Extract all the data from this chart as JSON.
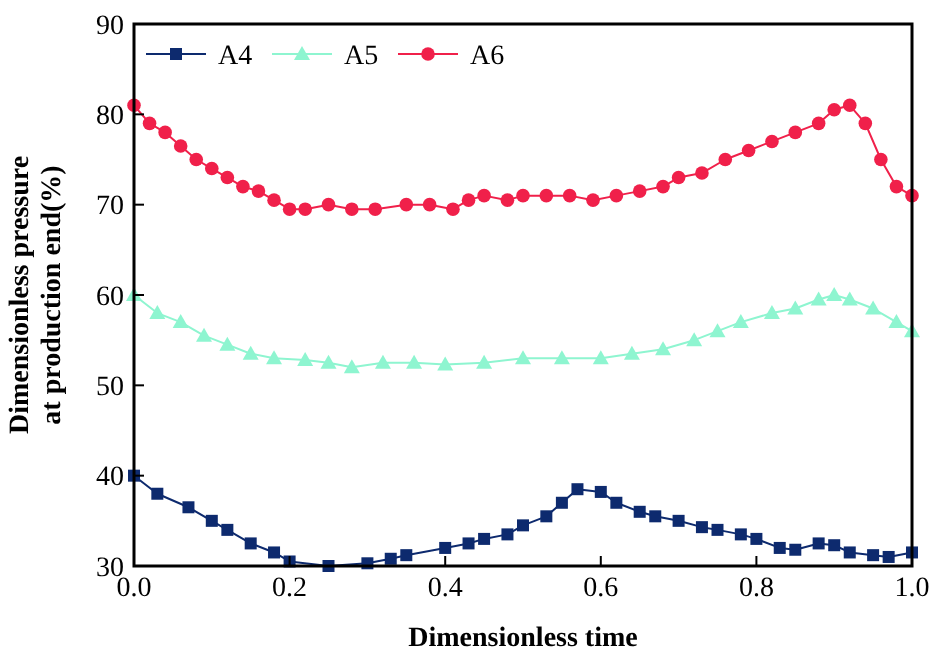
{
  "chart_data": {
    "type": "line",
    "xlabel": "Dimensionless time",
    "ylabel": "Dimensionless pressure\nat production end(%)",
    "xlim": [
      0,
      1
    ],
    "ylim": [
      30,
      90
    ],
    "xticks": [
      {
        "value": 0,
        "label": "0.0"
      },
      {
        "value": 0.2,
        "label": "0.2"
      },
      {
        "value": 0.4,
        "label": "0.4"
      },
      {
        "value": 0.6,
        "label": "0.6"
      },
      {
        "value": 0.8,
        "label": "0.8"
      },
      {
        "value": 1,
        "label": "1.0"
      }
    ],
    "yticks": [
      30,
      40,
      50,
      60,
      70,
      80,
      90
    ],
    "grid": false,
    "legend": "top left",
    "series": [
      {
        "name": "A4",
        "color": "#0d2a6e",
        "marker": "square",
        "x": [
          0,
          0.03,
          0.07,
          0.1,
          0.12,
          0.15,
          0.18,
          0.2,
          0.25,
          0.3,
          0.33,
          0.35,
          0.4,
          0.43,
          0.45,
          0.48,
          0.5,
          0.53,
          0.55,
          0.57,
          0.6,
          0.62,
          0.65,
          0.67,
          0.7,
          0.73,
          0.75,
          0.78,
          0.8,
          0.83,
          0.85,
          0.88,
          0.9,
          0.92,
          0.95,
          0.97,
          1
        ],
        "values": [
          40,
          38,
          36.5,
          35,
          34,
          32.5,
          31.5,
          30.5,
          30,
          30.3,
          30.8,
          31.2,
          32,
          32.5,
          33,
          33.5,
          34.5,
          35.5,
          37,
          38.5,
          38.2,
          37,
          36,
          35.5,
          35,
          34.3,
          34,
          33.5,
          33,
          32,
          31.8,
          32.5,
          32.3,
          31.5,
          31.2,
          31,
          31.5
        ]
      },
      {
        "name": "A5",
        "color": "#8ef5d0",
        "marker": "triangle",
        "x": [
          0,
          0.03,
          0.06,
          0.09,
          0.12,
          0.15,
          0.18,
          0.22,
          0.25,
          0.28,
          0.32,
          0.36,
          0.4,
          0.45,
          0.5,
          0.55,
          0.6,
          0.64,
          0.68,
          0.72,
          0.75,
          0.78,
          0.82,
          0.85,
          0.88,
          0.9,
          0.92,
          0.95,
          0.98,
          1
        ],
        "values": [
          60,
          58,
          57,
          55.5,
          54.5,
          53.5,
          53,
          52.8,
          52.5,
          52,
          52.5,
          52.5,
          52.3,
          52.5,
          53,
          53,
          53,
          53.5,
          54,
          55,
          56,
          57,
          58,
          58.5,
          59.5,
          60,
          59.5,
          58.5,
          57,
          56
        ]
      },
      {
        "name": "A6",
        "color": "#f0204a",
        "marker": "circle",
        "x": [
          0,
          0.02,
          0.04,
          0.06,
          0.08,
          0.1,
          0.12,
          0.14,
          0.16,
          0.18,
          0.2,
          0.22,
          0.25,
          0.28,
          0.31,
          0.35,
          0.38,
          0.41,
          0.43,
          0.45,
          0.48,
          0.5,
          0.53,
          0.56,
          0.59,
          0.62,
          0.65,
          0.68,
          0.7,
          0.73,
          0.76,
          0.79,
          0.82,
          0.85,
          0.88,
          0.9,
          0.92,
          0.94,
          0.96,
          0.98,
          1
        ],
        "values": [
          81,
          79,
          78,
          76.5,
          75,
          74,
          73,
          72,
          71.5,
          70.5,
          69.5,
          69.5,
          70,
          69.5,
          69.5,
          70,
          70,
          69.5,
          70.5,
          71,
          70.5,
          71,
          71,
          71,
          70.5,
          71,
          71.5,
          72,
          73,
          73.5,
          75,
          76,
          77,
          78,
          79,
          80.5,
          81,
          79,
          75,
          72,
          71
        ]
      }
    ]
  }
}
